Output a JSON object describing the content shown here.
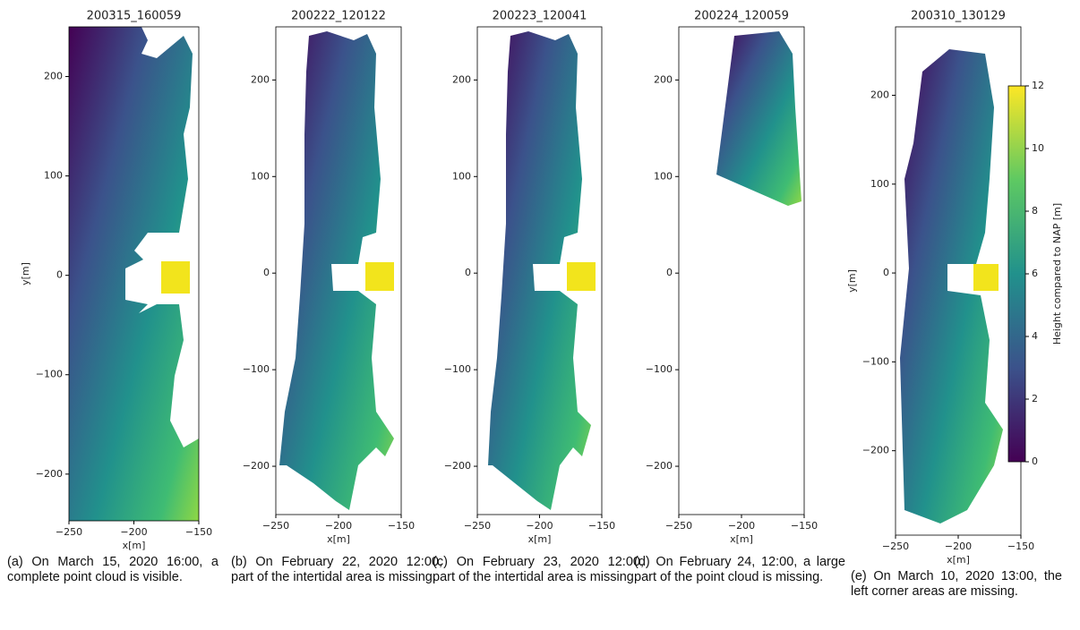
{
  "chart_data": [
    {
      "type": "scatter",
      "title": "200315_160059",
      "xlabel": "x[m]",
      "ylabel": "y[m]",
      "xlim": [
        -250,
        -150
      ],
      "ylim": [
        -247,
        250
      ],
      "xticks": [
        {
          "value": -250,
          "label": "−250"
        },
        {
          "value": -200,
          "label": "−200"
        },
        {
          "value": -150,
          "label": "−150"
        }
      ],
      "yticks": [
        {
          "value": -200,
          "label": "−200"
        },
        {
          "value": -100,
          "label": "−100"
        },
        0,
        100,
        200
      ],
      "caption": "(a) On March 15, 2020 16:00, a complete point cloud is visible."
    },
    {
      "type": "scatter",
      "title": "200222_120122",
      "xlabel": "x[m]",
      "xlim": [
        -250,
        -150
      ],
      "ylim": [
        -250,
        255
      ],
      "xticks": [
        {
          "value": -250,
          "label": "−250"
        },
        {
          "value": -200,
          "label": "−200"
        },
        {
          "value": -150,
          "label": "−150"
        }
      ],
      "yticks": [
        {
          "value": -200,
          "label": "−200"
        },
        {
          "value": -100,
          "label": "−100"
        },
        0,
        100,
        200
      ],
      "caption": "(b) On February 22, 2020 12:00, part of the intertidal area is missing."
    },
    {
      "type": "scatter",
      "title": "200223_120041",
      "xlabel": "x[m]",
      "xlim": [
        -250,
        -150
      ],
      "ylim": [
        -250,
        255
      ],
      "xticks": [
        {
          "value": -250,
          "label": "−250"
        },
        {
          "value": -200,
          "label": "−200"
        },
        {
          "value": -150,
          "label": "−150"
        }
      ],
      "yticks": [
        {
          "value": -200,
          "label": "−200"
        },
        {
          "value": -100,
          "label": "−100"
        },
        0,
        100,
        200
      ],
      "caption": "(c) On February 23, 2020 12:00, part of the intertidal area is missing."
    },
    {
      "type": "scatter",
      "title": "200224_120059",
      "xlabel": "x[m]",
      "xlim": [
        -250,
        -150
      ],
      "ylim": [
        -250,
        255
      ],
      "xticks": [
        {
          "value": -250,
          "label": "−250"
        },
        {
          "value": -200,
          "label": "−200"
        },
        {
          "value": -150,
          "label": "−150"
        }
      ],
      "yticks": [
        {
          "value": -200,
          "label": "−200"
        },
        {
          "value": -100,
          "label": "−100"
        },
        0,
        100,
        200
      ],
      "caption": "(d) On February 24, 12:00, a large part of the point cloud is missing."
    },
    {
      "type": "scatter",
      "title": "200310_130129",
      "xlabel": "x[m]",
      "ylabel": "y[m]",
      "xlim": [
        -250,
        -150
      ],
      "ylim": [
        -295,
        277
      ],
      "xticks": [
        {
          "value": -250,
          "label": "−250"
        },
        {
          "value": -200,
          "label": "−200"
        },
        {
          "value": -150,
          "label": "−150"
        }
      ],
      "yticks": [
        {
          "value": -200,
          "label": "−200"
        },
        {
          "value": -100,
          "label": "−100"
        },
        0,
        100,
        200
      ],
      "caption": "(e) On March 10, 2020 13:00, the left corner areas are missing."
    },
    {
      "type": "colorbar",
      "label": "Height compared to NAP [m]",
      "ylim": [
        0,
        12
      ],
      "yticks": [
        0,
        2,
        4,
        6,
        8,
        10,
        12
      ]
    }
  ]
}
